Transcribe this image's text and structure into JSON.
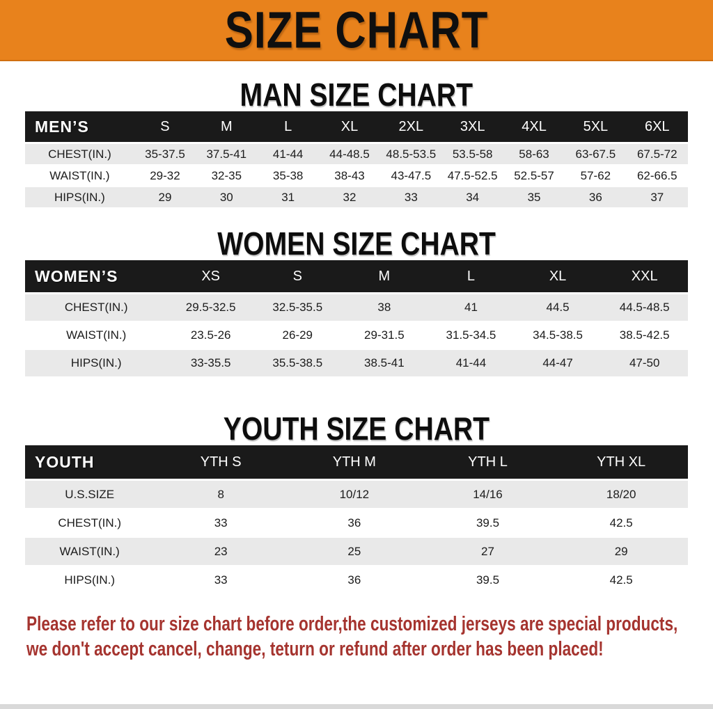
{
  "banner": {
    "title": "SIZE CHART",
    "bg_color": "#E8821C",
    "text_color": "#0F0F0F"
  },
  "sections": {
    "men": {
      "heading": "MAN SIZE CHART"
    },
    "women": {
      "heading": "WOMEN SIZE CHART"
    },
    "youth": {
      "heading": "YOUTH SIZE CHART"
    }
  },
  "tables": {
    "men": {
      "header": [
        "MEN’S",
        "S",
        "M",
        "L",
        "XL",
        "2XL",
        "3XL",
        "4XL",
        "5XL",
        "6XL"
      ],
      "rows": [
        [
          "CHEST(IN.)",
          "35-37.5",
          "37.5-41",
          "41-44",
          "44-48.5",
          "48.5-53.5",
          "53.5-58",
          "58-63",
          "63-67.5",
          "67.5-72"
        ],
        [
          "WAIST(IN.)",
          "29-32",
          "32-35",
          "35-38",
          "38-43",
          "43-47.5",
          "47.5-52.5",
          "52.5-57",
          "57-62",
          "62-66.5"
        ],
        [
          "HIPS(IN.)",
          "29",
          "30",
          "31",
          "32",
          "33",
          "34",
          "35",
          "36",
          "37"
        ]
      ]
    },
    "women": {
      "header": [
        "WOMEN’S",
        "XS",
        "S",
        "M",
        "L",
        "XL",
        "XXL"
      ],
      "rows": [
        [
          "CHEST(IN.)",
          "29.5-32.5",
          "32.5-35.5",
          "38",
          "41",
          "44.5",
          "44.5-48.5"
        ],
        [
          "WAIST(IN.)",
          "23.5-26",
          "26-29",
          "29-31.5",
          "31.5-34.5",
          "34.5-38.5",
          "38.5-42.5"
        ],
        [
          "HIPS(IN.)",
          "33-35.5",
          "35.5-38.5",
          "38.5-41",
          "41-44",
          "44-47",
          "47-50"
        ]
      ]
    },
    "youth": {
      "header": [
        "YOUTH",
        "YTH S",
        "YTH M",
        "YTH L",
        "YTH XL"
      ],
      "rows": [
        [
          "U.S.SIZE",
          "8",
          "10/12",
          "14/16",
          "18/20"
        ],
        [
          "CHEST(IN.)",
          "33",
          "36",
          "39.5",
          "42.5"
        ],
        [
          "WAIST(IN.)",
          "23",
          "25",
          "27",
          "29"
        ],
        [
          "HIPS(IN.)",
          "33",
          "36",
          "39.5",
          "42.5"
        ]
      ]
    }
  },
  "disclaimer": {
    "line1": "Please refer to our size chart before order,the customized jerseys are special products,",
    "line2": "we don't accept cancel, change, teturn or refund after order has been placed!",
    "color": "#A5342F"
  },
  "colors": {
    "header_bar_bg": "#1A1A1A",
    "header_bar_text": "#FFFFFF",
    "row_alt_bg": "#E9E9E9",
    "row_bg": "#FFFFFF",
    "bottom_strip": "#D9D9D9"
  }
}
